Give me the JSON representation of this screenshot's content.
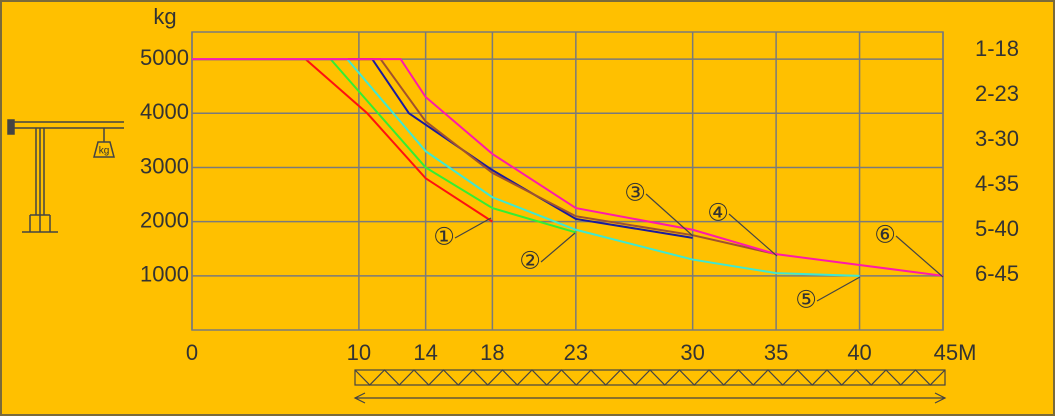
{
  "chart_data": {
    "type": "line",
    "y_label": "kg",
    "xlim": [
      0,
      45
    ],
    "ylim": [
      0,
      5500
    ],
    "xticks": [
      0,
      10,
      14,
      18,
      23,
      30,
      35,
      40,
      {
        "value": 45,
        "label": "45M"
      }
    ],
    "yticks": [
      1000,
      2000,
      3000,
      4000,
      5000
    ],
    "grid": true,
    "series": [
      {
        "name": "1-18",
        "color": "#ff1010",
        "x": [
          0,
          6.8,
          10.5,
          14,
          18
        ],
        "values": [
          5000,
          5000,
          4000,
          2800,
          2000
        ]
      },
      {
        "name": "2-23",
        "color": "#33ee33",
        "x": [
          0,
          8.3,
          14,
          18,
          23
        ],
        "values": [
          5000,
          5000,
          3000,
          2250,
          1800
        ]
      },
      {
        "name": "3-30",
        "color": "#1a1a9e",
        "x": [
          0,
          10.8,
          13,
          18,
          23,
          30
        ],
        "values": [
          5000,
          5000,
          4000,
          2950,
          2050,
          1700
        ]
      },
      {
        "name": "4-35",
        "color": "#a0522d",
        "x": [
          0,
          11.3,
          14,
          18,
          23,
          30,
          35
        ],
        "values": [
          5000,
          5000,
          3850,
          2900,
          2100,
          1750,
          1400
        ]
      },
      {
        "name": "5-40",
        "color": "#40e8d0",
        "x": [
          0,
          9.3,
          14,
          18,
          23,
          30,
          35,
          40
        ],
        "values": [
          5000,
          5000,
          3300,
          2450,
          1850,
          1300,
          1050,
          1000
        ]
      },
      {
        "name": "6-45",
        "color": "#ff1aaa",
        "x": [
          0,
          12.5,
          14,
          18,
          23,
          30,
          35,
          40,
          45
        ],
        "values": [
          5000,
          5000,
          4300,
          3250,
          2250,
          1850,
          1400,
          1200,
          1000
        ]
      }
    ],
    "annotations": [
      "①",
      "②",
      "③",
      "④",
      "⑤",
      "⑥"
    ]
  }
}
